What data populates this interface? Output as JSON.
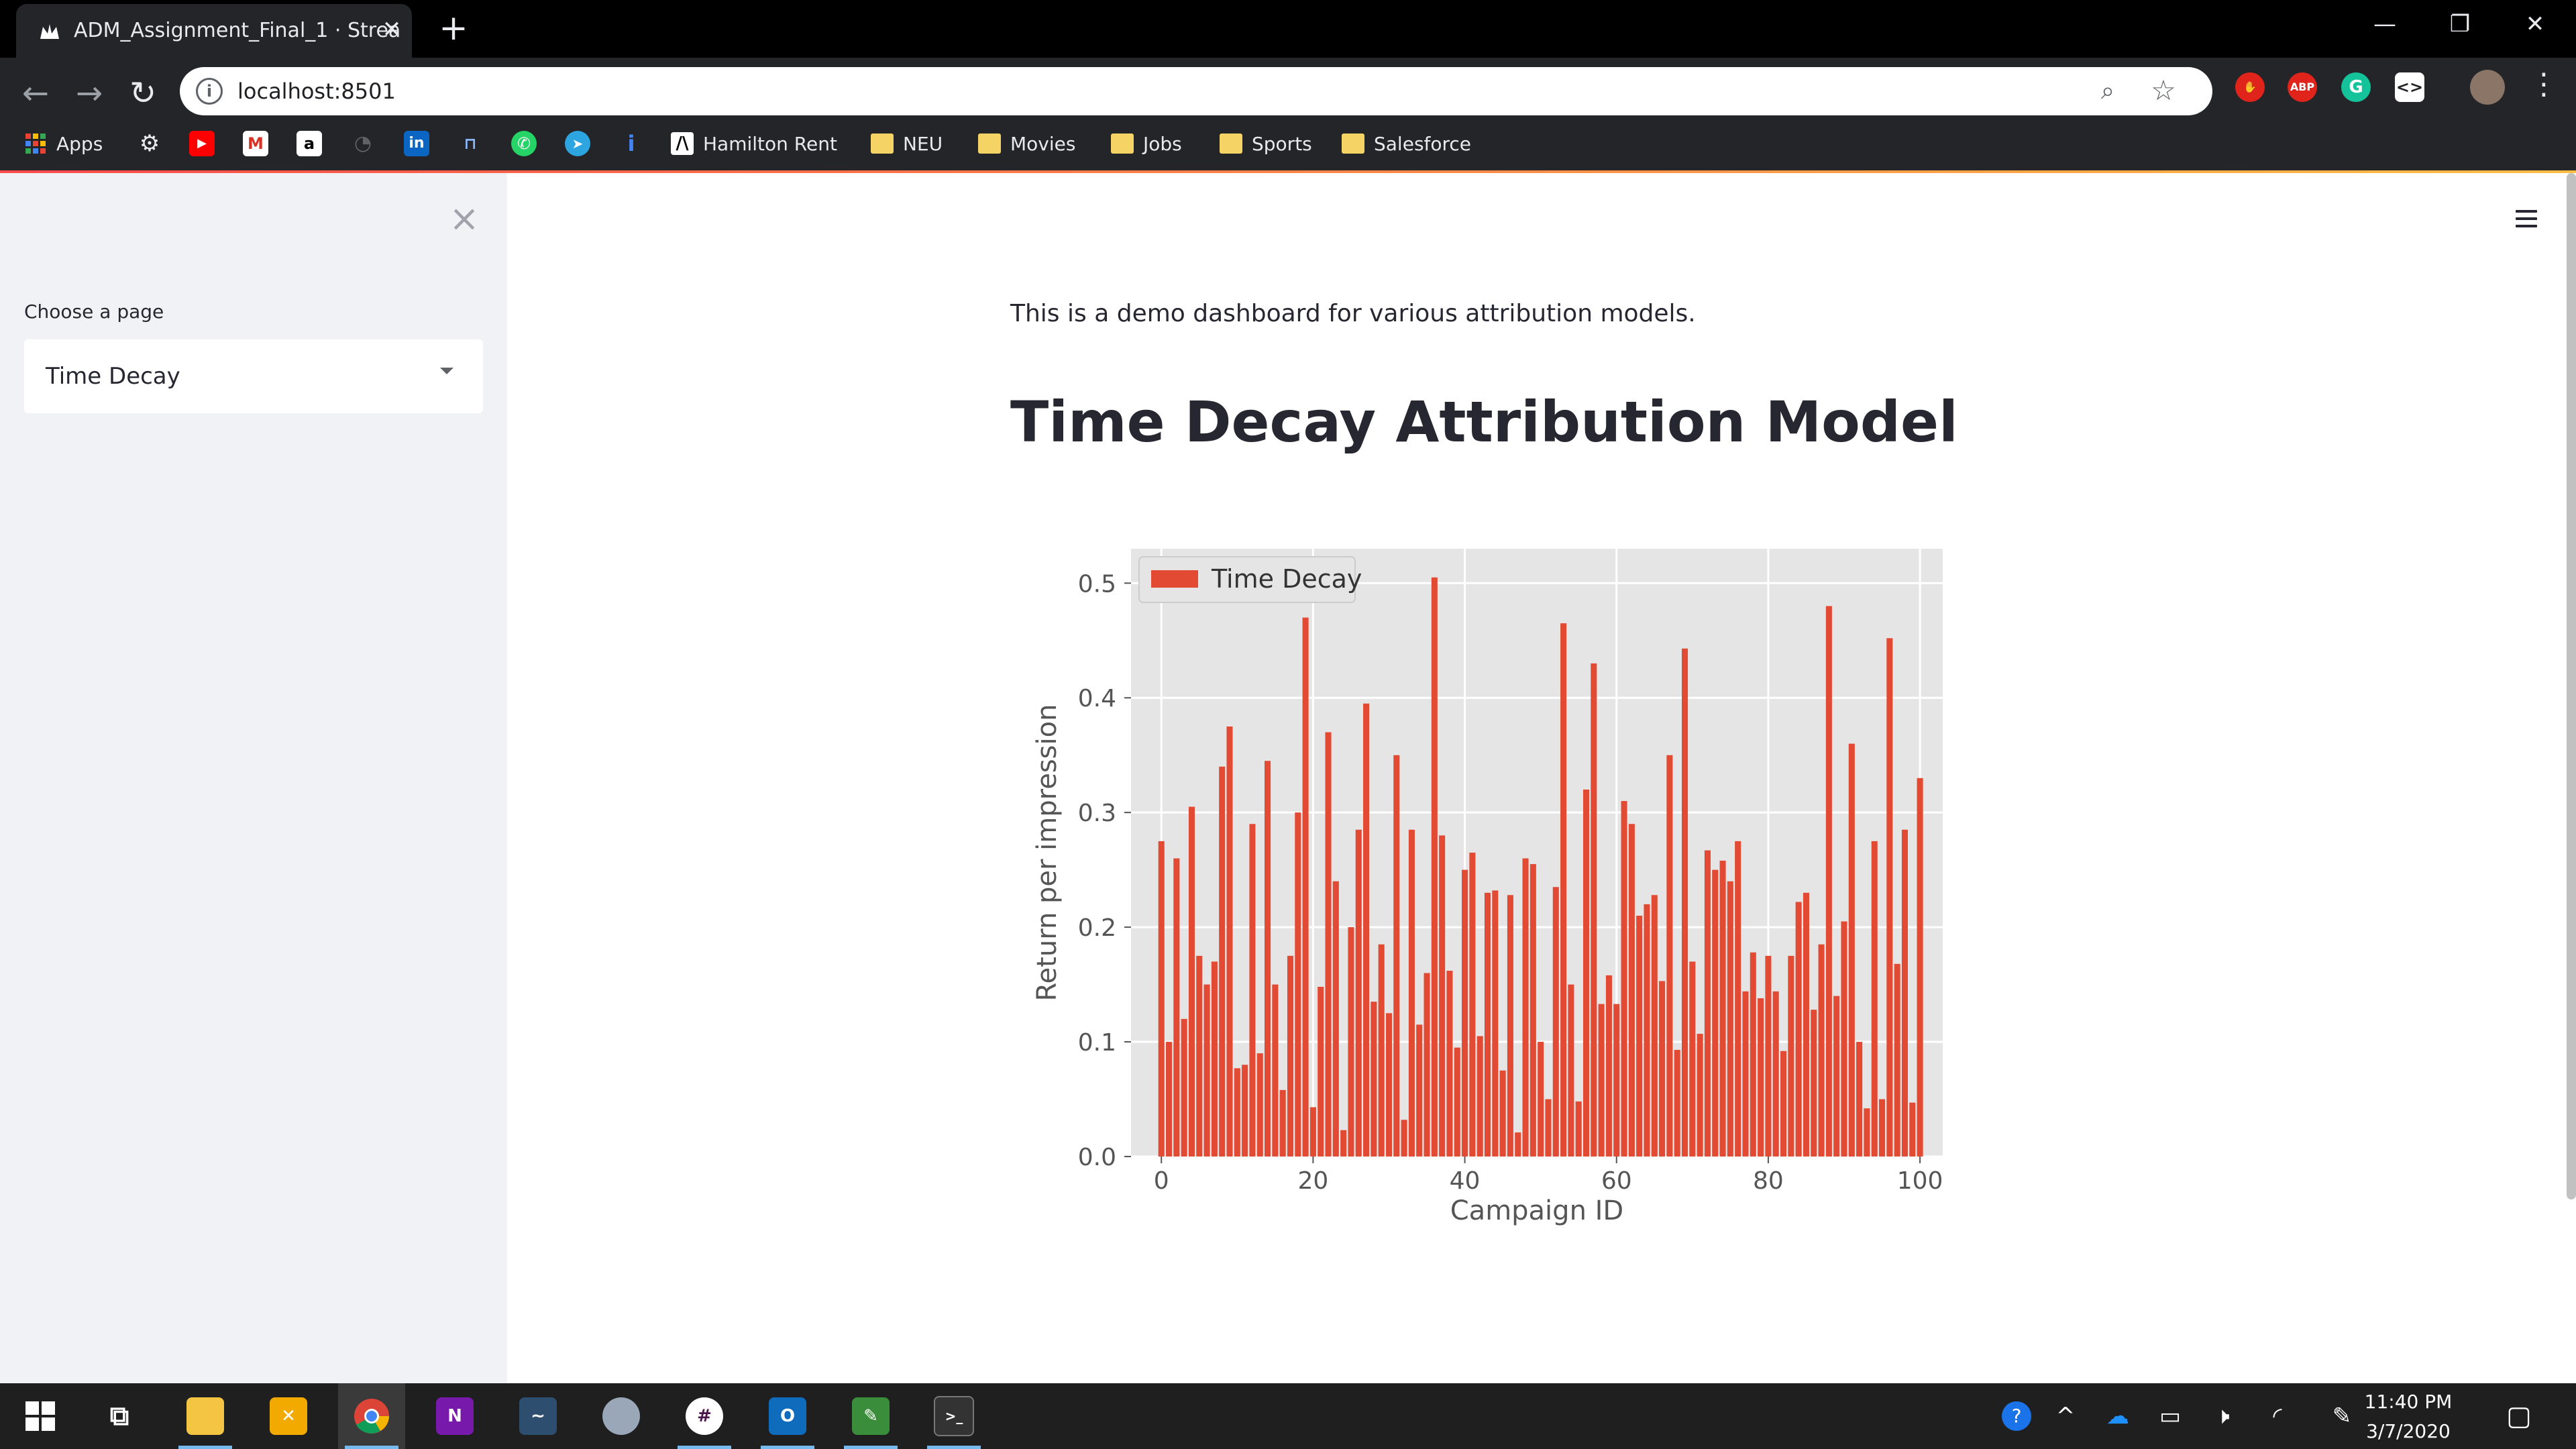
{
  "browser": {
    "tab_title": "ADM_Assignment_Final_1 · Strea",
    "tab_close": "✕",
    "new_tab": "+",
    "url": "localhost:8501",
    "window_controls": {
      "minimize": "—",
      "restore": "❐",
      "close": "✕"
    },
    "bookmarks": {
      "apps": "Apps",
      "hamilton": "Hamilton Rent",
      "neu": "NEU",
      "movies": "Movies",
      "jobs": "Jobs",
      "sports": "Sports",
      "salesforce": "Salesforce"
    },
    "extensions": {
      "adblock": "ABP",
      "grammarly": "G"
    }
  },
  "sidebar": {
    "label": "Choose a page",
    "selected": "Time Decay"
  },
  "main": {
    "intro": "This is a demo dashboard for various attribution models.",
    "heading": "Time Decay Attribution Model"
  },
  "chart_data": {
    "type": "bar",
    "title": "",
    "xlabel": "Campaign ID",
    "ylabel": "Return per impression",
    "legend": [
      "Time Decay"
    ],
    "legend_position": "top-left",
    "grid": true,
    "xlim": [
      -4,
      103
    ],
    "ylim": [
      0,
      0.53
    ],
    "xticks": [
      0,
      20,
      40,
      60,
      80,
      100
    ],
    "yticks": [
      0.0,
      0.1,
      0.2,
      0.3,
      0.4,
      0.5
    ],
    "ytick_labels": [
      "0.0",
      "0.1",
      "0.2",
      "0.3",
      "0.4",
      "0.5"
    ],
    "series": [
      {
        "name": "Time Decay",
        "color": "#E24A33",
        "x": [
          0,
          1,
          2,
          3,
          4,
          5,
          6,
          7,
          8,
          9,
          10,
          11,
          12,
          13,
          14,
          15,
          16,
          17,
          18,
          19,
          20,
          21,
          22,
          23,
          24,
          25,
          26,
          27,
          28,
          29,
          30,
          31,
          32,
          33,
          34,
          35,
          36,
          37,
          38,
          39,
          40,
          41,
          42,
          43,
          44,
          45,
          46,
          47,
          48,
          49,
          50,
          51,
          52,
          53,
          54,
          55,
          56,
          57,
          58,
          59,
          60,
          61,
          62,
          63,
          64,
          65,
          66,
          67,
          68,
          69,
          70,
          71,
          72,
          73,
          74,
          75,
          76,
          77,
          78,
          79,
          80,
          81,
          82,
          83,
          84,
          85,
          86,
          87,
          88,
          89,
          90,
          91,
          92,
          93,
          94,
          95,
          96,
          97,
          98,
          99,
          100
        ],
        "values": [
          0.275,
          0.1,
          0.26,
          0.12,
          0.305,
          0.175,
          0.15,
          0.17,
          0.34,
          0.375,
          0.077,
          0.08,
          0.29,
          0.09,
          0.345,
          0.15,
          0.058,
          0.175,
          0.3,
          0.47,
          0.043,
          0.148,
          0.37,
          0.24,
          0.023,
          0.2,
          0.285,
          0.395,
          0.135,
          0.185,
          0.125,
          0.35,
          0.032,
          0.285,
          0.115,
          0.16,
          0.505,
          0.28,
          0.162,
          0.095,
          0.25,
          0.265,
          0.105,
          0.23,
          0.232,
          0.075,
          0.228,
          0.021,
          0.26,
          0.255,
          0.1,
          0.05,
          0.235,
          0.465,
          0.15,
          0.048,
          0.32,
          0.43,
          0.133,
          0.158,
          0.133,
          0.31,
          0.29,
          0.21,
          0.22,
          0.228,
          0.153,
          0.35,
          0.093,
          0.443,
          0.17,
          0.107,
          0.267,
          0.25,
          0.258,
          0.24,
          0.275,
          0.144,
          0.178,
          0.138,
          0.175,
          0.144,
          0.092,
          0.175,
          0.222,
          0.23,
          0.128,
          0.185,
          0.48,
          0.14,
          0.205,
          0.36,
          0.1,
          0.042,
          0.275,
          0.05,
          0.452,
          0.168,
          0.285,
          0.047,
          0.33
        ]
      }
    ]
  },
  "taskbar": {
    "time": "11:40 PM",
    "date": "3/7/2020"
  }
}
